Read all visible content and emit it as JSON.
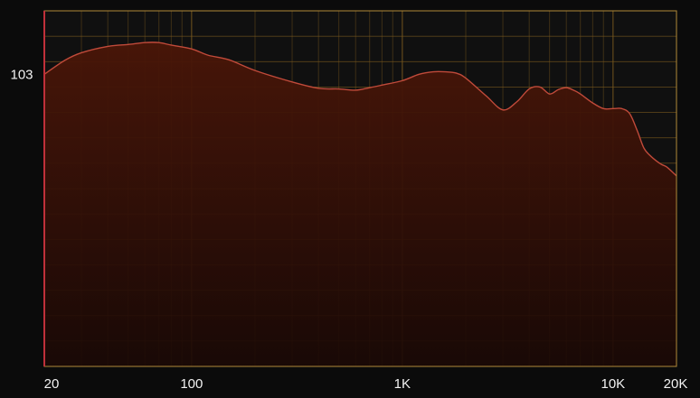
{
  "chart_data": {
    "type": "area",
    "title": "",
    "xlabel": "",
    "ylabel": "",
    "x_scale": "log",
    "xlim": [
      20,
      20000
    ],
    "ylim": [
      80,
      108
    ],
    "x_ticks": [
      {
        "value": 20,
        "label": "20"
      },
      {
        "value": 100,
        "label": "100"
      },
      {
        "value": 1000,
        "label": "1K"
      },
      {
        "value": 10000,
        "label": "10K"
      },
      {
        "value": 20000,
        "label": "20K"
      }
    ],
    "y_ticks": [
      {
        "value": 103,
        "label": "103"
      }
    ],
    "grid": true,
    "series": [
      {
        "x": [
          20,
          25,
          30,
          40,
          50,
          60,
          70,
          80,
          100,
          120,
          150,
          200,
          300,
          400,
          500,
          600,
          700,
          800,
          1000,
          1200,
          1400,
          1600,
          1800,
          2000,
          2500,
          3000,
          3500,
          4000,
          4500,
          5000,
          5500,
          6000,
          6500,
          7000,
          8000,
          9000,
          10000,
          11000,
          12000,
          13000,
          14000,
          15000,
          16000,
          17000,
          18000,
          20000
        ],
        "y": [
          103.0,
          104.1,
          104.7,
          105.2,
          105.35,
          105.5,
          105.5,
          105.3,
          105.0,
          104.5,
          104.15,
          103.3,
          102.4,
          101.9,
          101.85,
          101.75,
          101.95,
          102.15,
          102.5,
          103.0,
          103.2,
          103.2,
          103.1,
          102.7,
          101.3,
          100.2,
          100.85,
          101.85,
          102.0,
          101.45,
          101.8,
          101.95,
          101.75,
          101.45,
          100.75,
          100.3,
          100.3,
          100.3,
          99.9,
          98.6,
          97.2,
          96.6,
          96.2,
          95.9,
          95.7,
          95.0
        ]
      }
    ],
    "colors": {
      "background": "#0b0b0b",
      "plot_background": "#101010",
      "grid": "#7a5a1e",
      "frame": "#b08a3a",
      "left_axis": "#c0303a",
      "line": "#c04a3a",
      "fill_top": "#4a1608",
      "fill_bottom": "#1a0805",
      "text": "#f2f2f2"
    }
  }
}
